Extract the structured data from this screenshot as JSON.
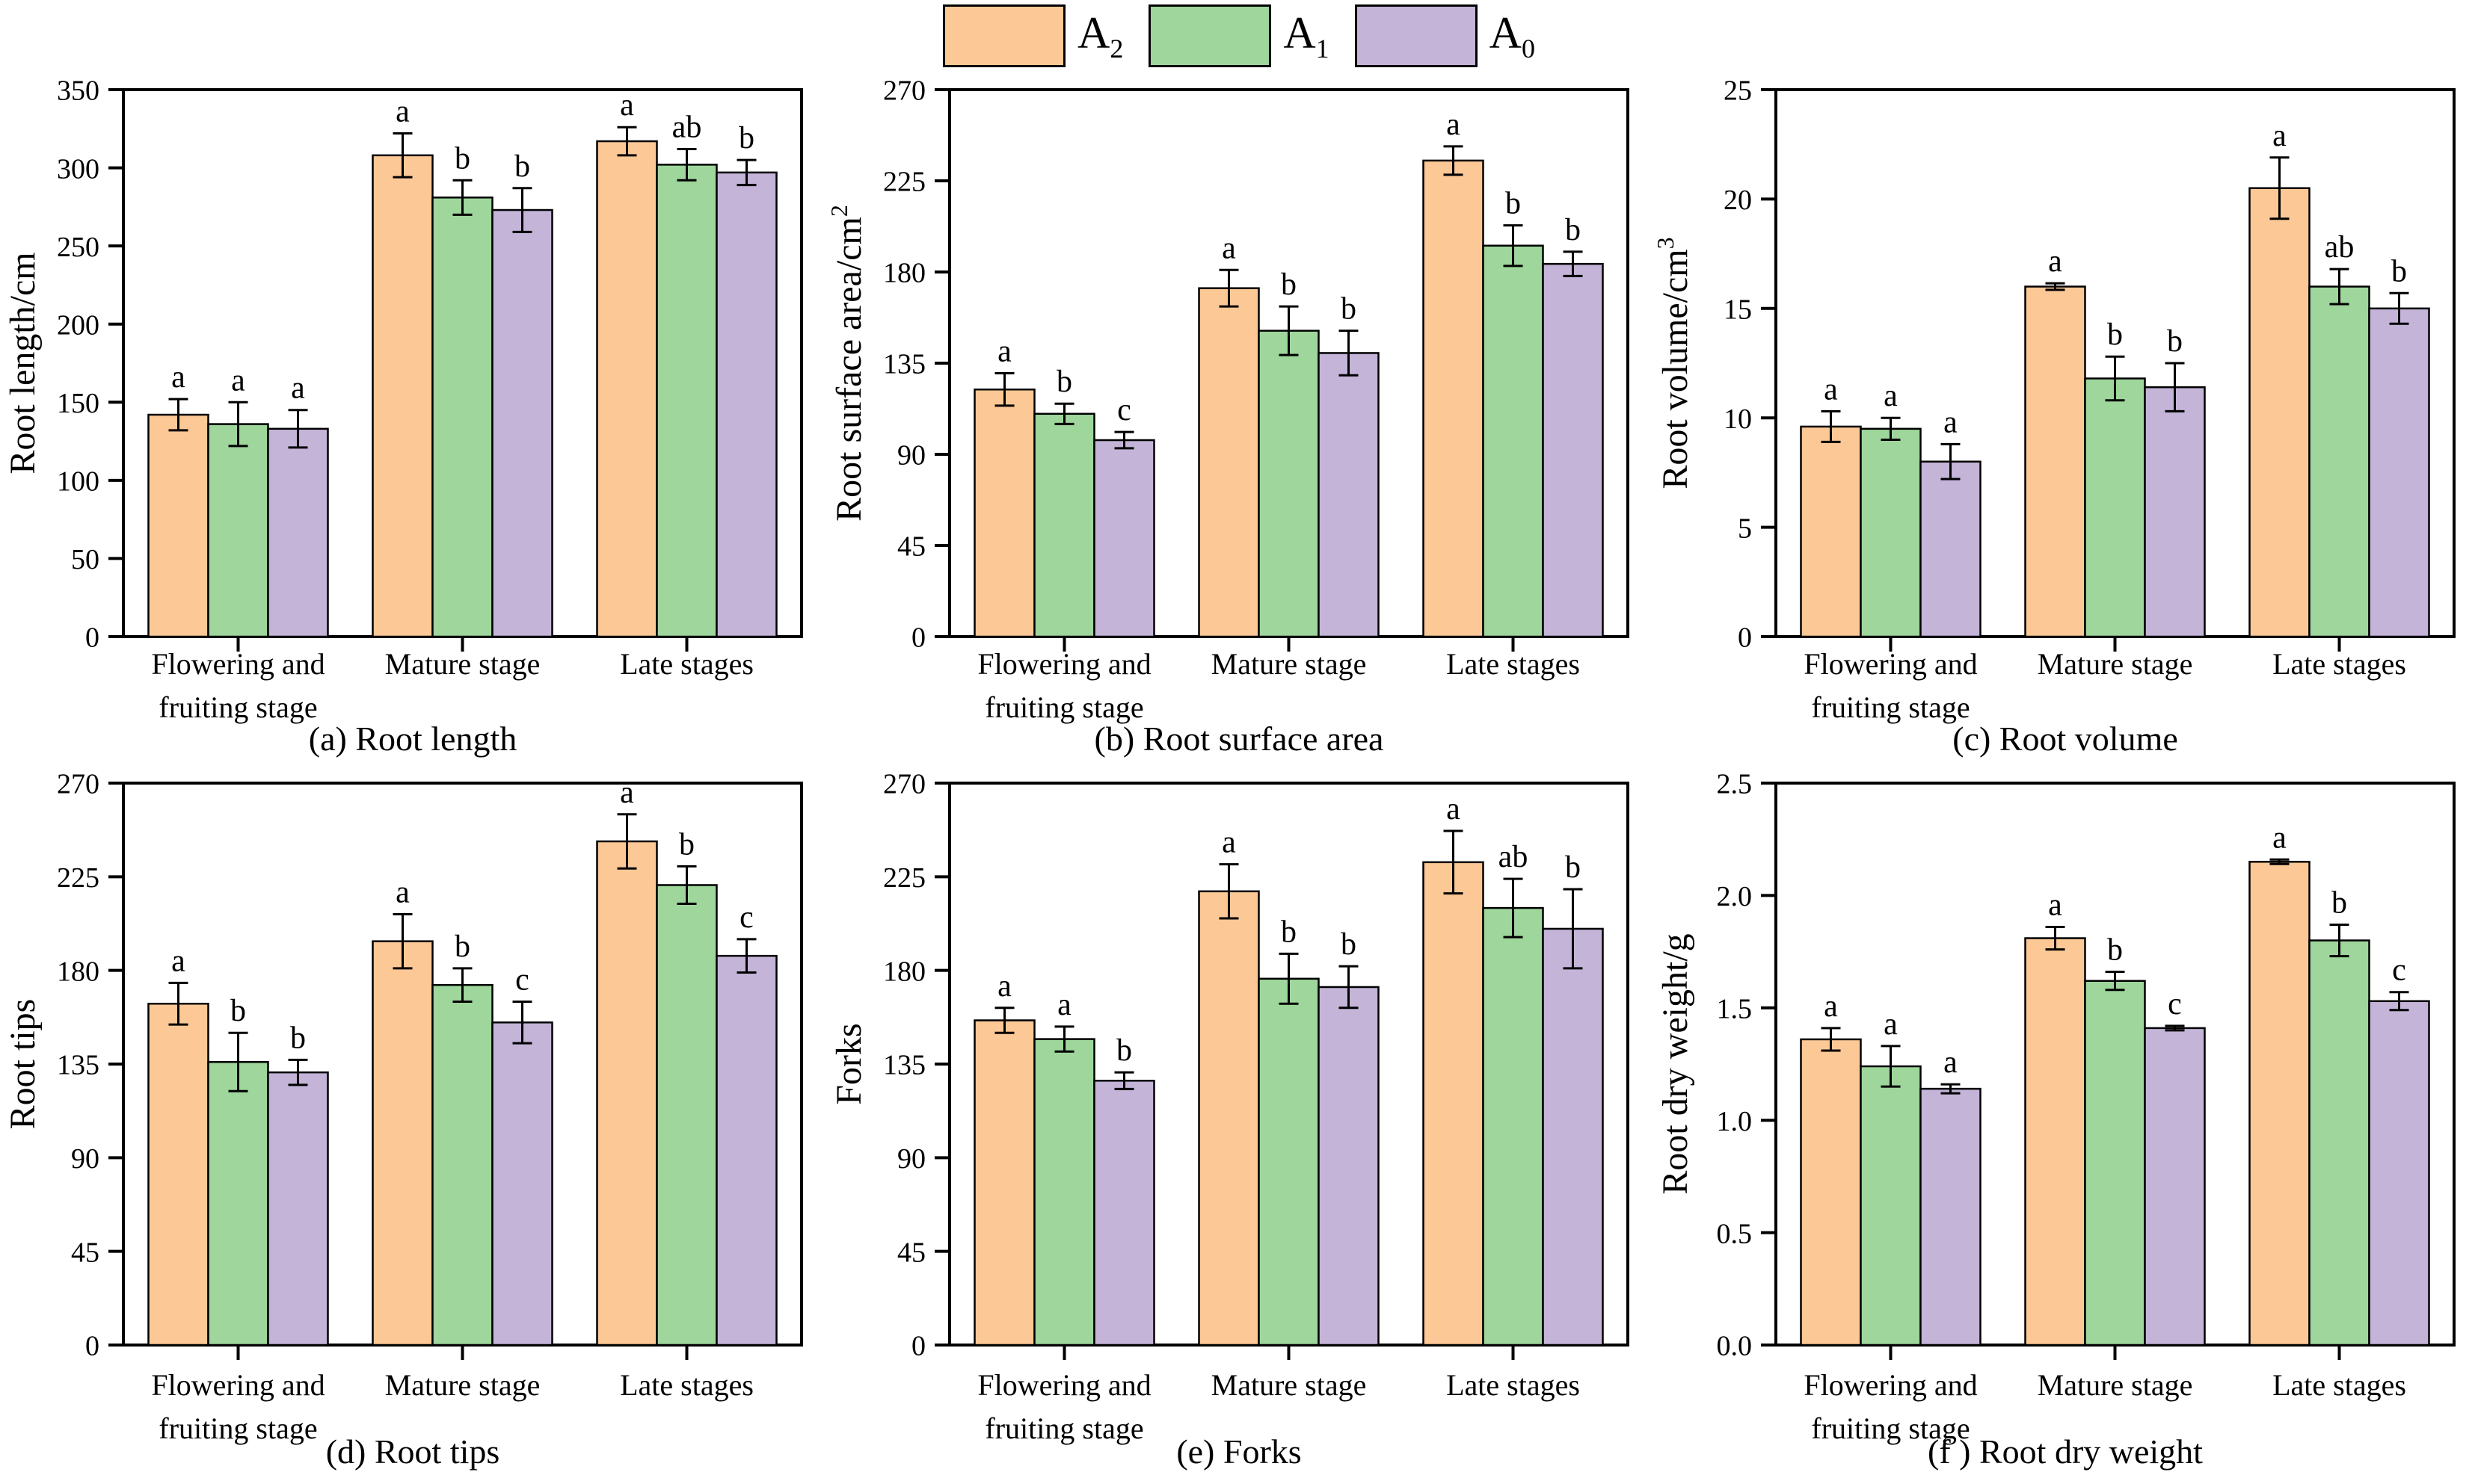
{
  "figure": {
    "background": "#ffffff"
  },
  "legend": {
    "position": "top-center",
    "border_color": "#000000",
    "items": [
      {
        "base": "A",
        "sub": "2",
        "color": "#FBC896"
      },
      {
        "base": "A",
        "sub": "1",
        "color": "#9ED69C"
      },
      {
        "base": "A",
        "sub": "0",
        "color": "#C3B4D8"
      }
    ]
  },
  "categories": [
    {
      "line1": "Flowering and",
      "line2": "fruiting stage"
    },
    {
      "line1": "Mature stage",
      "line2": ""
    },
    {
      "line1": "Late stages",
      "line2": ""
    }
  ],
  "chart_data": [
    {
      "id": "a",
      "type": "bar",
      "caption": "(a) Root length",
      "ylabel": "Root length/cm",
      "ylabel_sup": "",
      "ylim": [
        0,
        350
      ],
      "ytick_step": 50,
      "ytick_decimals": 0,
      "grid": false,
      "categories": [
        "Flowering and fruiting stage",
        "Mature stage",
        "Late stages"
      ],
      "series": [
        {
          "name": "A2",
          "color": "#FBC896",
          "values": [
            142,
            308,
            317
          ],
          "errors": [
            10,
            14,
            9
          ],
          "letters": [
            "a",
            "a",
            "a"
          ]
        },
        {
          "name": "A1",
          "color": "#9ED69C",
          "values": [
            136,
            281,
            302
          ],
          "errors": [
            14,
            11,
            10
          ],
          "letters": [
            "a",
            "b",
            "ab"
          ]
        },
        {
          "name": "A0",
          "color": "#C3B4D8",
          "values": [
            133,
            273,
            297
          ],
          "errors": [
            12,
            14,
            8
          ],
          "letters": [
            "a",
            "b",
            "b"
          ]
        }
      ]
    },
    {
      "id": "b",
      "type": "bar",
      "caption": "(b) Root surface area",
      "ylabel": "Root surface area/cm",
      "ylabel_sup": "2",
      "ylim": [
        0,
        270
      ],
      "ytick_step": 45,
      "ytick_decimals": 0,
      "grid": false,
      "categories": [
        "Flowering and fruiting stage",
        "Mature stage",
        "Late stages"
      ],
      "series": [
        {
          "name": "A2",
          "color": "#FBC896",
          "values": [
            122,
            172,
            235
          ],
          "errors": [
            8,
            9,
            7
          ],
          "letters": [
            "a",
            "a",
            "a"
          ]
        },
        {
          "name": "A1",
          "color": "#9ED69C",
          "values": [
            110,
            151,
            193
          ],
          "errors": [
            5,
            12,
            10
          ],
          "letters": [
            "b",
            "b",
            "b"
          ]
        },
        {
          "name": "A0",
          "color": "#C3B4D8",
          "values": [
            97,
            140,
            184
          ],
          "errors": [
            4,
            11,
            6
          ],
          "letters": [
            "c",
            "b",
            "b"
          ]
        }
      ]
    },
    {
      "id": "c",
      "type": "bar",
      "caption": "(c) Root volume",
      "ylabel": "Root volume/cm",
      "ylabel_sup": "3",
      "ylim": [
        0,
        25
      ],
      "ytick_step": 5,
      "ytick_decimals": 0,
      "grid": false,
      "categories": [
        "Flowering and fruiting stage",
        "Mature stage",
        "Late stages"
      ],
      "series": [
        {
          "name": "A2",
          "color": "#FBC896",
          "values": [
            9.6,
            16.0,
            20.5
          ],
          "errors": [
            0.7,
            0.15,
            1.4
          ],
          "letters": [
            "a",
            "a",
            "a"
          ]
        },
        {
          "name": "A1",
          "color": "#9ED69C",
          "values": [
            9.5,
            11.8,
            16.0
          ],
          "errors": [
            0.5,
            1.0,
            0.8
          ],
          "letters": [
            "a",
            "b",
            "ab"
          ]
        },
        {
          "name": "A0",
          "color": "#C3B4D8",
          "values": [
            8.0,
            11.4,
            15.0
          ],
          "errors": [
            0.8,
            1.1,
            0.7
          ],
          "letters": [
            "a",
            "b",
            "b"
          ]
        }
      ]
    },
    {
      "id": "d",
      "type": "bar",
      "caption": "(d) Root tips",
      "ylabel": "Root tips",
      "ylabel_sup": "",
      "ylim": [
        0,
        270
      ],
      "ytick_step": 45,
      "ytick_decimals": 0,
      "grid": false,
      "categories": [
        "Flowering and fruiting stage",
        "Mature stage",
        "Late stages"
      ],
      "series": [
        {
          "name": "A2",
          "color": "#FBC896",
          "values": [
            164,
            194,
            242
          ],
          "errors": [
            10,
            13,
            13
          ],
          "letters": [
            "a",
            "a",
            "a"
          ]
        },
        {
          "name": "A1",
          "color": "#9ED69C",
          "values": [
            136,
            173,
            221
          ],
          "errors": [
            14,
            8,
            9
          ],
          "letters": [
            "b",
            "b",
            "b"
          ]
        },
        {
          "name": "A0",
          "color": "#C3B4D8",
          "values": [
            131,
            155,
            187
          ],
          "errors": [
            6,
            10,
            8
          ],
          "letters": [
            "b",
            "c",
            "c"
          ]
        }
      ]
    },
    {
      "id": "e",
      "type": "bar",
      "caption": "(e) Forks",
      "ylabel": "Forks",
      "ylabel_sup": "",
      "ylim": [
        0,
        270
      ],
      "ytick_step": 45,
      "ytick_decimals": 0,
      "grid": false,
      "categories": [
        "Flowering and fruiting stage",
        "Mature stage",
        "Late stages"
      ],
      "series": [
        {
          "name": "A2",
          "color": "#FBC896",
          "values": [
            156,
            218,
            232
          ],
          "errors": [
            6,
            13,
            15
          ],
          "letters": [
            "a",
            "a",
            "a"
          ]
        },
        {
          "name": "A1",
          "color": "#9ED69C",
          "values": [
            147,
            176,
            210
          ],
          "errors": [
            6,
            12,
            14
          ],
          "letters": [
            "a",
            "b",
            "ab"
          ]
        },
        {
          "name": "A0",
          "color": "#C3B4D8",
          "values": [
            127,
            172,
            200
          ],
          "errors": [
            4,
            10,
            19
          ],
          "letters": [
            "b",
            "b",
            "b"
          ]
        }
      ]
    },
    {
      "id": "f",
      "type": "bar",
      "caption": "(f ) Root dry weight",
      "ylabel": "Root dry weight/g",
      "ylabel_sup": "",
      "ylim": [
        0,
        2.5
      ],
      "ytick_step": 0.5,
      "ytick_decimals": 1,
      "grid": false,
      "categories": [
        "Flowering and fruiting stage",
        "Mature stage",
        "Late stages"
      ],
      "series": [
        {
          "name": "A2",
          "color": "#FBC896",
          "values": [
            1.36,
            1.81,
            2.15
          ],
          "errors": [
            0.05,
            0.05,
            0.01
          ],
          "letters": [
            "a",
            "a",
            "a"
          ]
        },
        {
          "name": "A1",
          "color": "#9ED69C",
          "values": [
            1.24,
            1.62,
            1.8
          ],
          "errors": [
            0.09,
            0.04,
            0.07
          ],
          "letters": [
            "a",
            "b",
            "b"
          ]
        },
        {
          "name": "A0",
          "color": "#C3B4D8",
          "values": [
            1.14,
            1.41,
            1.53
          ],
          "errors": [
            0.02,
            0.01,
            0.04
          ],
          "letters": [
            "a",
            "c",
            "c"
          ]
        }
      ]
    }
  ]
}
